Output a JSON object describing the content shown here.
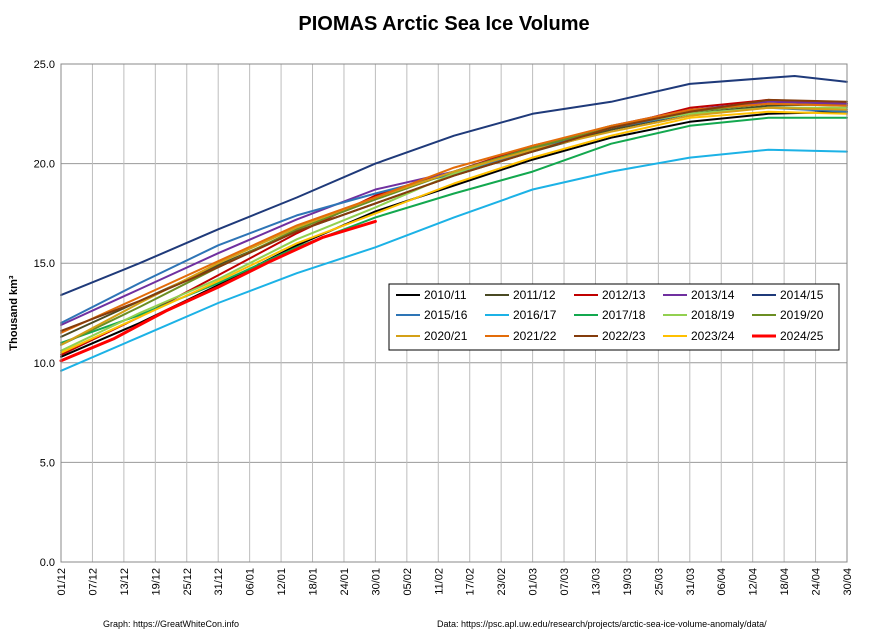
{
  "chart_data": {
    "type": "line",
    "title": "PIOMAS Arctic Sea Ice Volume",
    "xlabel": "",
    "ylabel": "Thousand km³",
    "ylim": [
      0,
      25
    ],
    "yticks": [
      "0.0",
      "5.0",
      "10.0",
      "15.0",
      "20.0",
      "25.0"
    ],
    "xlim": [
      0,
      150
    ],
    "xticks": [
      {
        "x": 0,
        "label": "01/12"
      },
      {
        "x": 6,
        "label": "07/12"
      },
      {
        "x": 12,
        "label": "13/12"
      },
      {
        "x": 18,
        "label": "19/12"
      },
      {
        "x": 24,
        "label": "25/12"
      },
      {
        "x": 30,
        "label": "31/12"
      },
      {
        "x": 36,
        "label": "06/01"
      },
      {
        "x": 42,
        "label": "12/01"
      },
      {
        "x": 48,
        "label": "18/01"
      },
      {
        "x": 54,
        "label": "24/01"
      },
      {
        "x": 60,
        "label": "30/01"
      },
      {
        "x": 66,
        "label": "05/02"
      },
      {
        "x": 72,
        "label": "11/02"
      },
      {
        "x": 78,
        "label": "17/02"
      },
      {
        "x": 84,
        "label": "23/02"
      },
      {
        "x": 90,
        "label": "01/03"
      },
      {
        "x": 96,
        "label": "07/03"
      },
      {
        "x": 102,
        "label": "13/03"
      },
      {
        "x": 108,
        "label": "19/03"
      },
      {
        "x": 114,
        "label": "25/03"
      },
      {
        "x": 120,
        "label": "31/03"
      },
      {
        "x": 126,
        "label": "06/04"
      },
      {
        "x": 132,
        "label": "12/04"
      },
      {
        "x": 138,
        "label": "18/04"
      },
      {
        "x": 144,
        "label": "24/04"
      },
      {
        "x": 150,
        "label": "30/04"
      }
    ],
    "grid": true,
    "legend_position": "center-right",
    "series": [
      {
        "name": "2010/11",
        "color": "#000000",
        "width": 2,
        "points": [
          [
            0,
            10.3
          ],
          [
            15,
            12.0
          ],
          [
            30,
            13.9
          ],
          [
            45,
            15.9
          ],
          [
            60,
            17.6
          ],
          [
            75,
            18.9
          ],
          [
            90,
            20.2
          ],
          [
            105,
            21.3
          ],
          [
            120,
            22.1
          ],
          [
            135,
            22.5
          ],
          [
            150,
            22.6
          ]
        ]
      },
      {
        "name": "2011/12",
        "color": "#4a4a24",
        "width": 2,
        "points": [
          [
            0,
            11.3
          ],
          [
            15,
            13.1
          ],
          [
            30,
            14.9
          ],
          [
            45,
            16.6
          ],
          [
            60,
            18.0
          ],
          [
            75,
            19.4
          ],
          [
            90,
            20.6
          ],
          [
            105,
            21.7
          ],
          [
            120,
            22.5
          ],
          [
            135,
            22.9
          ],
          [
            150,
            23.0
          ]
        ]
      },
      {
        "name": "2012/13",
        "color": "#c00000",
        "width": 2,
        "points": [
          [
            0,
            10.4
          ],
          [
            15,
            12.3
          ],
          [
            30,
            14.4
          ],
          [
            45,
            16.5
          ],
          [
            60,
            18.4
          ],
          [
            75,
            19.6
          ],
          [
            90,
            20.9
          ],
          [
            105,
            21.8
          ],
          [
            120,
            22.8
          ],
          [
            135,
            23.2
          ],
          [
            150,
            23.0
          ]
        ]
      },
      {
        "name": "2013/14",
        "color": "#7030a0",
        "width": 2,
        "points": [
          [
            0,
            11.9
          ],
          [
            15,
            13.7
          ],
          [
            30,
            15.5
          ],
          [
            45,
            17.2
          ],
          [
            60,
            18.7
          ],
          [
            75,
            19.6
          ],
          [
            90,
            20.8
          ],
          [
            105,
            21.9
          ],
          [
            120,
            22.7
          ],
          [
            135,
            23.1
          ],
          [
            150,
            23.0
          ]
        ]
      },
      {
        "name": "2014/15",
        "color": "#1f3a7a",
        "width": 2,
        "points": [
          [
            0,
            13.4
          ],
          [
            15,
            15.0
          ],
          [
            30,
            16.7
          ],
          [
            45,
            18.3
          ],
          [
            60,
            20.0
          ],
          [
            75,
            21.4
          ],
          [
            90,
            22.5
          ],
          [
            105,
            23.1
          ],
          [
            120,
            24.0
          ],
          [
            135,
            24.3
          ],
          [
            140,
            24.4
          ],
          [
            150,
            24.1
          ]
        ]
      },
      {
        "name": "2015/16",
        "color": "#2e75b6",
        "width": 2,
        "points": [
          [
            0,
            12.0
          ],
          [
            15,
            14.0
          ],
          [
            30,
            15.9
          ],
          [
            45,
            17.4
          ],
          [
            60,
            18.5
          ],
          [
            75,
            19.5
          ],
          [
            90,
            20.7
          ],
          [
            105,
            21.8
          ],
          [
            120,
            22.5
          ],
          [
            135,
            22.8
          ],
          [
            150,
            22.6
          ]
        ]
      },
      {
        "name": "2016/17",
        "color": "#1cb2e6",
        "width": 2,
        "points": [
          [
            0,
            9.6
          ],
          [
            15,
            11.3
          ],
          [
            30,
            13.0
          ],
          [
            45,
            14.5
          ],
          [
            60,
            15.8
          ],
          [
            75,
            17.3
          ],
          [
            90,
            18.7
          ],
          [
            105,
            19.6
          ],
          [
            120,
            20.3
          ],
          [
            135,
            20.7
          ],
          [
            150,
            20.6
          ]
        ]
      },
      {
        "name": "2017/18",
        "color": "#13a84f",
        "width": 2,
        "points": [
          [
            0,
            11.0
          ],
          [
            15,
            12.4
          ],
          [
            30,
            14.0
          ],
          [
            45,
            15.8
          ],
          [
            60,
            17.3
          ],
          [
            75,
            18.5
          ],
          [
            90,
            19.6
          ],
          [
            105,
            21.0
          ],
          [
            120,
            21.9
          ],
          [
            135,
            22.3
          ],
          [
            150,
            22.3
          ]
        ]
      },
      {
        "name": "2018/19",
        "color": "#92d050",
        "width": 2,
        "points": [
          [
            0,
            10.6
          ],
          [
            15,
            12.5
          ],
          [
            30,
            14.2
          ],
          [
            45,
            16.2
          ],
          [
            60,
            17.8
          ],
          [
            75,
            19.5
          ],
          [
            90,
            20.8
          ],
          [
            105,
            21.9
          ],
          [
            120,
            22.5
          ],
          [
            135,
            22.8
          ],
          [
            150,
            22.8
          ]
        ]
      },
      {
        "name": "2019/20",
        "color": "#6b8e23",
        "width": 2,
        "points": [
          [
            0,
            10.9
          ],
          [
            15,
            12.8
          ],
          [
            30,
            14.8
          ],
          [
            45,
            16.7
          ],
          [
            60,
            18.2
          ],
          [
            75,
            19.6
          ],
          [
            90,
            20.8
          ],
          [
            105,
            21.8
          ],
          [
            120,
            22.6
          ],
          [
            135,
            23.0
          ],
          [
            150,
            22.9
          ]
        ]
      },
      {
        "name": "2020/21",
        "color": "#d4a017",
        "width": 2,
        "points": [
          [
            0,
            10.9
          ],
          [
            15,
            13.0
          ],
          [
            30,
            15.0
          ],
          [
            45,
            16.8
          ],
          [
            60,
            18.3
          ],
          [
            75,
            19.6
          ],
          [
            90,
            20.7
          ],
          [
            105,
            21.6
          ],
          [
            120,
            22.4
          ],
          [
            135,
            22.8
          ],
          [
            150,
            22.7
          ]
        ]
      },
      {
        "name": "2021/22",
        "color": "#e36c09",
        "width": 2,
        "points": [
          [
            0,
            11.5
          ],
          [
            15,
            13.3
          ],
          [
            30,
            15.1
          ],
          [
            45,
            16.9
          ],
          [
            60,
            18.3
          ],
          [
            75,
            19.8
          ],
          [
            90,
            20.9
          ],
          [
            105,
            21.9
          ],
          [
            120,
            22.7
          ],
          [
            135,
            23.0
          ],
          [
            150,
            22.9
          ]
        ]
      },
      {
        "name": "2022/23",
        "color": "#843c0c",
        "width": 2,
        "points": [
          [
            0,
            11.6
          ],
          [
            15,
            13.1
          ],
          [
            30,
            14.8
          ],
          [
            45,
            16.6
          ],
          [
            60,
            18.0
          ],
          [
            75,
            19.4
          ],
          [
            90,
            20.6
          ],
          [
            105,
            21.8
          ],
          [
            120,
            22.6
          ],
          [
            135,
            23.2
          ],
          [
            150,
            23.1
          ]
        ]
      },
      {
        "name": "2023/24",
        "color": "#ffc000",
        "width": 2,
        "points": [
          [
            0,
            10.5
          ],
          [
            15,
            12.3
          ],
          [
            30,
            14.1
          ],
          [
            45,
            16.0
          ],
          [
            60,
            17.5
          ],
          [
            75,
            19.0
          ],
          [
            90,
            20.3
          ],
          [
            105,
            21.4
          ],
          [
            120,
            22.3
          ],
          [
            135,
            22.6
          ],
          [
            150,
            22.5
          ]
        ]
      },
      {
        "name": "2024/25",
        "color": "#ff0000",
        "width": 3,
        "points": [
          [
            0,
            10.1
          ],
          [
            10,
            11.2
          ],
          [
            20,
            12.6
          ],
          [
            30,
            13.8
          ],
          [
            40,
            15.1
          ],
          [
            50,
            16.3
          ],
          [
            60,
            17.1
          ]
        ]
      }
    ],
    "footer_left": "Graph: https://GreatWhiteCon.info",
    "footer_right": "Data: https://psc.apl.uw.edu/research/projects/arctic-sea-ice-volume-anomaly/data/"
  }
}
